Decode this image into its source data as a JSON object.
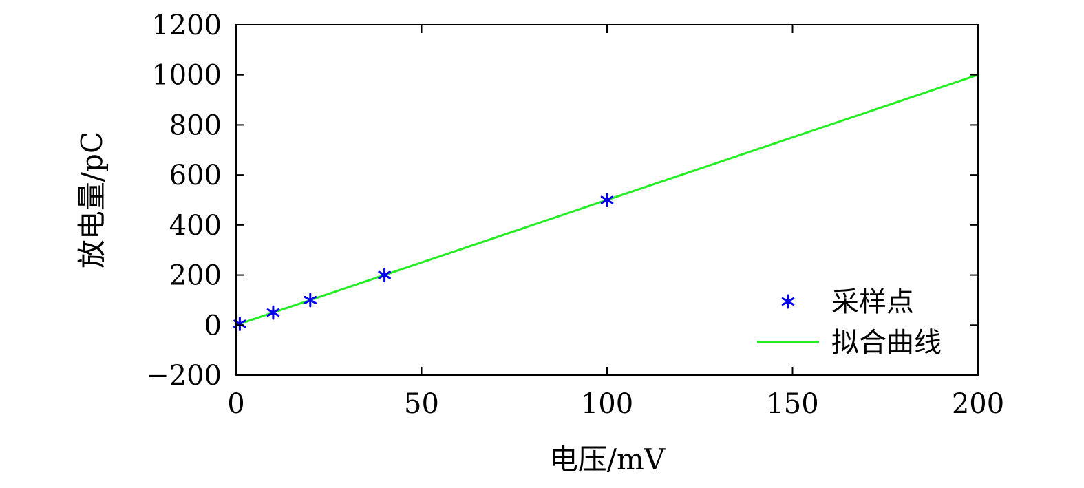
{
  "chart_data": {
    "type": "scatter",
    "xlabel": "电压/mV",
    "ylabel": "放电量/pC",
    "xlim": [
      0,
      200
    ],
    "ylim": [
      -200,
      1200
    ],
    "xticks": [
      0,
      50,
      100,
      150,
      200
    ],
    "yticks": [
      -200,
      0,
      200,
      400,
      600,
      800,
      1000,
      1200
    ],
    "ytick_labels": [
      "−200",
      "0",
      "200",
      "400",
      "600",
      "800",
      "1000",
      "1200"
    ],
    "grid": false,
    "legend_position": "bottom-right",
    "series": [
      {
        "name": "采样点",
        "kind": "scatter",
        "marker": "asterisk",
        "color": "#0000ee",
        "x": [
          1,
          10,
          20,
          40,
          100
        ],
        "y": [
          5,
          50,
          100,
          200,
          500
        ]
      },
      {
        "name": "拟合曲线",
        "kind": "line",
        "color": "#22ee22",
        "x": [
          0,
          200
        ],
        "y": [
          0,
          1000
        ]
      }
    ]
  }
}
